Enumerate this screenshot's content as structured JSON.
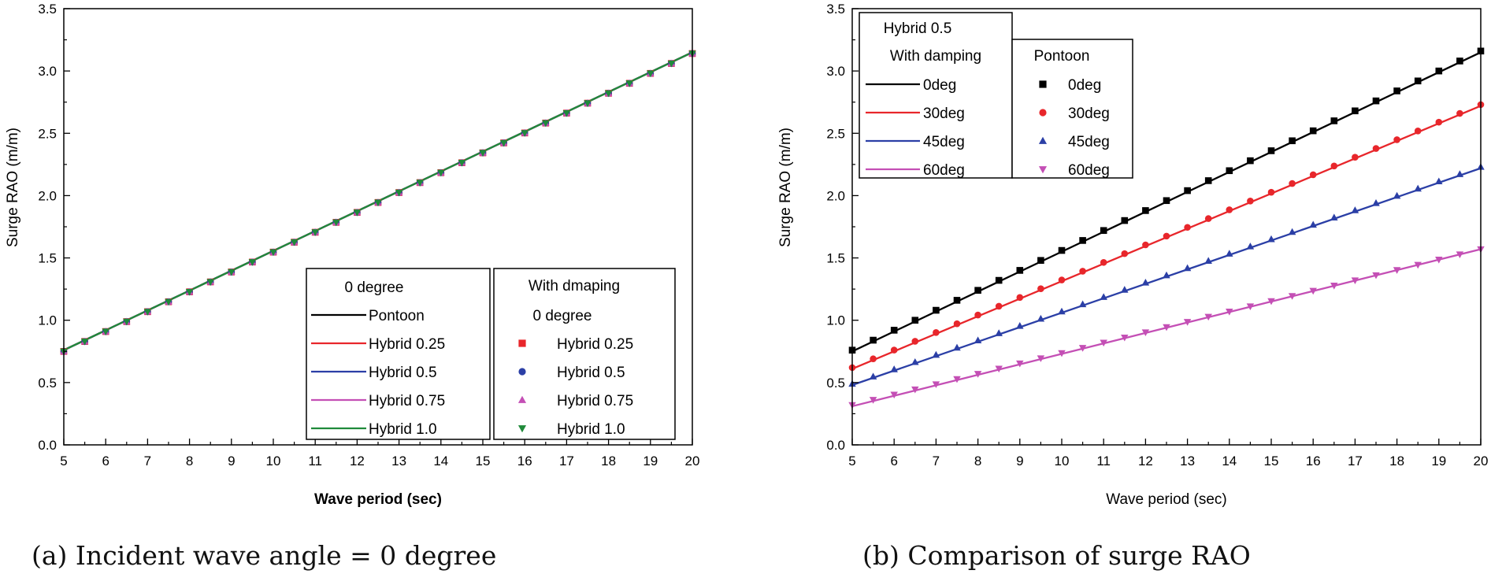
{
  "captions": {
    "a": "(a) Incident wave angle = 0 degree",
    "b": "(b) Comparison of surge RAO"
  },
  "chart_data": [
    {
      "type": "line",
      "xlabel": "Wave period (sec)",
      "ylabel": "Surge RAO (m/m)",
      "xlim": [
        5,
        20
      ],
      "ylim": [
        0,
        3.5
      ],
      "xticks": [
        "5",
        "6",
        "7",
        "8",
        "9",
        "10",
        "11",
        "12",
        "13",
        "14",
        "15",
        "16",
        "17",
        "18",
        "19",
        "20"
      ],
      "yticks": [
        "0.0",
        "0.5",
        "1.0",
        "1.5",
        "2.0",
        "2.5",
        "3.0",
        "3.5"
      ],
      "grid": false,
      "legend_position": "bottom-right",
      "legend_lines": {
        "title": "0 degree",
        "entries": [
          "Pontoon",
          "Hybrid 0.25",
          "Hybrid 0.5",
          "Hybrid 0.75",
          "Hybrid 1.0"
        ]
      },
      "legend_markers": {
        "title_line1": "With dmaping",
        "title_line2": "0 degree",
        "entries": [
          "Hybrid 0.25",
          "Hybrid 0.5",
          "Hybrid 0.75",
          "Hybrid 1.0"
        ]
      },
      "line_series": [
        {
          "name": "Pontoon",
          "color": "#000000",
          "y_start": 0.76,
          "y_end": 3.15
        },
        {
          "name": "Hybrid 0.25",
          "color": "#e8262b",
          "y_start": 0.76,
          "y_end": 3.15
        },
        {
          "name": "Hybrid 0.5",
          "color": "#2b3fa6",
          "y_start": 0.76,
          "y_end": 3.15
        },
        {
          "name": "Hybrid 0.75",
          "color": "#c44fb5",
          "y_start": 0.76,
          "y_end": 3.15
        },
        {
          "name": "Hybrid 1.0",
          "color": "#1f8a3a",
          "y_start": 0.76,
          "y_end": 3.15
        }
      ],
      "marker_series": [
        {
          "name": "Hybrid 0.25",
          "color": "#e8262b",
          "marker": "square",
          "y_start": 0.75,
          "y_end": 3.14
        },
        {
          "name": "Hybrid 0.5",
          "color": "#2b3fa6",
          "marker": "circle",
          "y_start": 0.75,
          "y_end": 3.14
        },
        {
          "name": "Hybrid 0.75",
          "color": "#c44fb5",
          "marker": "triangle-up",
          "y_start": 0.75,
          "y_end": 3.14
        },
        {
          "name": "Hybrid 1.0",
          "color": "#1f8a3a",
          "marker": "triangle-down",
          "y_start": 0.75,
          "y_end": 3.14
        }
      ],
      "marker_x_start": 5,
      "marker_x_step": 0.5
    },
    {
      "type": "line",
      "xlabel": "Wave period (sec)",
      "ylabel": "Surge RAO (m/m)",
      "xlim": [
        5,
        20
      ],
      "ylim": [
        0,
        3.5
      ],
      "xticks": [
        "5",
        "6",
        "7",
        "8",
        "9",
        "10",
        "11",
        "12",
        "13",
        "14",
        "15",
        "16",
        "17",
        "18",
        "19",
        "20"
      ],
      "yticks": [
        "0.0",
        "0.5",
        "1.0",
        "1.5",
        "2.0",
        "2.5",
        "3.0",
        "3.5"
      ],
      "grid": false,
      "legend_position": "top-left",
      "legend_lines": {
        "title_line1": "Hybrid 0.5",
        "title_line2": "With damping",
        "entries": [
          "0deg",
          "30deg",
          "45deg",
          "60deg"
        ]
      },
      "legend_markers": {
        "title": "Pontoon",
        "entries": [
          "0deg",
          "30deg",
          "45deg",
          "60deg"
        ]
      },
      "line_series": [
        {
          "name": "0deg",
          "color": "#000000",
          "y_start": 0.75,
          "y_end": 3.15
        },
        {
          "name": "30deg",
          "color": "#e8262b",
          "y_start": 0.61,
          "y_end": 2.72
        },
        {
          "name": "45deg",
          "color": "#2b3fa6",
          "y_start": 0.48,
          "y_end": 2.22
        },
        {
          "name": "60deg",
          "color": "#c44fb5",
          "y_start": 0.31,
          "y_end": 1.57
        }
      ],
      "marker_series": [
        {
          "name": "0deg",
          "color": "#000000",
          "marker": "square",
          "y_start": 0.76,
          "y_end": 3.16
        },
        {
          "name": "30deg",
          "color": "#e8262b",
          "marker": "circle",
          "y_start": 0.62,
          "y_end": 2.73
        },
        {
          "name": "45deg",
          "color": "#2b3fa6",
          "marker": "triangle-up",
          "y_start": 0.49,
          "y_end": 2.23
        },
        {
          "name": "60deg",
          "color": "#c44fb5",
          "marker": "triangle-down",
          "y_start": 0.32,
          "y_end": 1.57
        }
      ],
      "marker_x_start": 5,
      "marker_x_step": 0.5
    }
  ]
}
